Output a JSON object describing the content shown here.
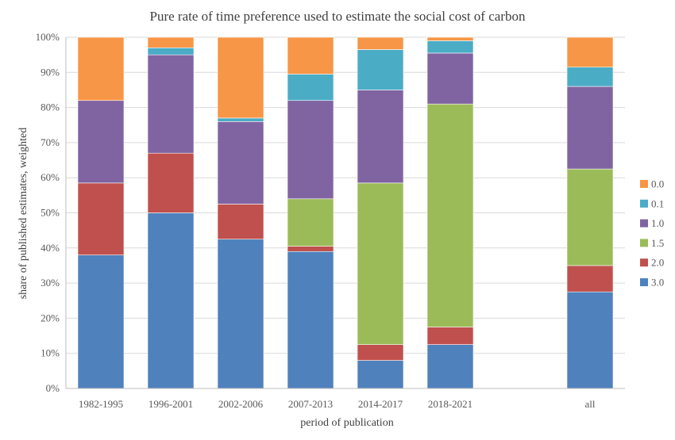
{
  "chart_data": {
    "type": "bar",
    "stacked": true,
    "title": "Pure rate of time preference used to estimate the social cost of carbon",
    "xlabel": "period of publication",
    "ylabel": "share of published estimates, weighted",
    "ylim": [
      0,
      100
    ],
    "yticks": [
      "0%",
      "10%",
      "20%",
      "30%",
      "40%",
      "50%",
      "60%",
      "70%",
      "80%",
      "90%",
      "100%"
    ],
    "grid": true,
    "legend_position": "right",
    "categories": [
      "1982-1995",
      "1996-2001",
      "2002-2006",
      "2007-2013",
      "2014-2017",
      "2018-2021",
      "",
      "all"
    ],
    "series": [
      {
        "name": "3.0",
        "color": "#4F81BD",
        "values": [
          38,
          50,
          42.5,
          39,
          8,
          12.5,
          null,
          27.5
        ]
      },
      {
        "name": "2.0",
        "color": "#C0504D",
        "values": [
          20.5,
          17,
          10,
          1.5,
          4.5,
          5,
          null,
          7.5
        ]
      },
      {
        "name": "1.5",
        "color": "#9BBB59",
        "values": [
          0,
          0,
          0,
          13.5,
          46,
          63.5,
          null,
          27.5
        ]
      },
      {
        "name": "1.0",
        "color": "#8064A2",
        "values": [
          23.5,
          28,
          23.5,
          28,
          26.5,
          14.5,
          null,
          23.5
        ]
      },
      {
        "name": "0.1",
        "color": "#4BACC6",
        "values": [
          0,
          2,
          1,
          7.5,
          11.5,
          3.5,
          null,
          5.5
        ]
      },
      {
        "name": "0.0",
        "color": "#F79646",
        "values": [
          18,
          3,
          23,
          10.5,
          3.5,
          1,
          null,
          8.5
        ]
      }
    ]
  }
}
